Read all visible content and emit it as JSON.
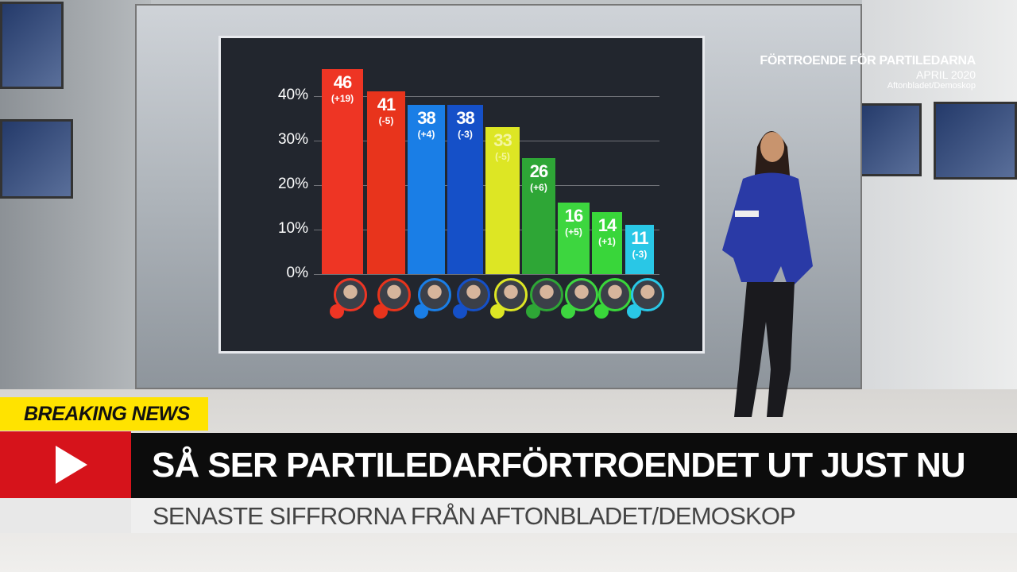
{
  "chart_data": {
    "type": "bar",
    "title": "FÖRTROENDE FÖR PARTILEDARNA",
    "subtitle": "APRIL 2020",
    "source": "Aftonbladet/Demoskop",
    "yticks": [
      "40%",
      "30%",
      "20%",
      "10%",
      "0%"
    ],
    "ylim": [
      0,
      50
    ],
    "grid": true,
    "values": [
      46,
      41,
      38,
      38,
      33,
      26,
      16,
      14,
      11
    ],
    "changes": [
      "(+19)",
      "(-5)",
      "(+4)",
      "(-3)",
      "(-5)",
      "(+6)",
      "(+5)",
      "(+1)",
      "(-3)"
    ],
    "colors": [
      "#ee3524",
      "#e8341c",
      "#1a7ee6",
      "#1550c8",
      "#dde624",
      "#2ea636",
      "#3dd63f",
      "#39d63a",
      "#29c7e6"
    ],
    "party_icons": [
      "s-rose-icon",
      "v-logo-icon",
      "m-logo-icon",
      "kd-logo-icon",
      "sd-flower-icon",
      "c-clover-icon",
      "mp-sun-icon",
      "mp-sun-icon",
      "l-logo-icon"
    ]
  },
  "lower_third": {
    "badge": "BREAKING NEWS",
    "headline": "SÅ SER PARTILEDARFÖRTROENDET UT JUST NU",
    "subheadline": "SENASTE SIFFRORNA FRÅN AFTONBLADET/DEMOSKOP",
    "badge_color": "#ffe300",
    "accent_color": "#d6131b"
  }
}
